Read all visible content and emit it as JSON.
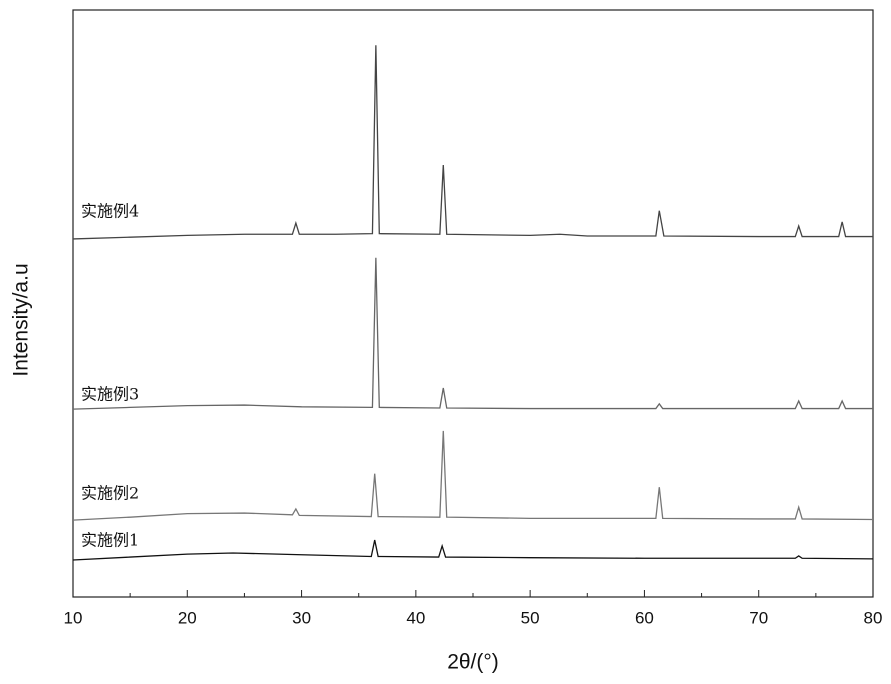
{
  "chart_data": {
    "type": "line",
    "x_label": "2θ/(°)",
    "y_label": "Intensity/a.u",
    "xlim": [
      10,
      80
    ],
    "xticks": [
      10,
      20,
      30,
      40,
      50,
      60,
      70,
      80
    ],
    "xminorticks": [
      15,
      25,
      35,
      45,
      55,
      65,
      75
    ],
    "ylim": [
      0,
      100
    ],
    "series": [
      {
        "name": "实施例1",
        "color": "#111111",
        "x": [
          10,
          15,
          20,
          24,
          30,
          36.1,
          36.4,
          36.7,
          42,
          42.3,
          42.6,
          50,
          60,
          73.2,
          73.5,
          73.8,
          80
        ],
        "values": [
          6.3,
          6.8,
          7.3,
          7.5,
          7.2,
          6.9,
          9.7,
          6.9,
          6.8,
          8.7,
          6.8,
          6.7,
          6.6,
          6.6,
          7.0,
          6.6,
          6.5
        ]
      },
      {
        "name": "实施例2",
        "color": "#777777",
        "x": [
          10,
          15,
          20,
          25,
          29.2,
          29.5,
          29.8,
          36.1,
          36.4,
          36.7,
          42.1,
          42.4,
          42.7,
          50,
          61,
          61.3,
          61.6,
          70,
          73.2,
          73.5,
          73.8,
          80
        ],
        "values": [
          13.1,
          13.6,
          14.2,
          14.3,
          14.0,
          15.0,
          13.9,
          13.7,
          21.0,
          13.7,
          13.6,
          28.3,
          13.6,
          13.4,
          13.4,
          18.7,
          13.4,
          13.3,
          13.3,
          15.3,
          13.3,
          13.2
        ]
      },
      {
        "name": "实施例3",
        "color": "#666666",
        "x": [
          10,
          15,
          20,
          25,
          30,
          36.2,
          36.5,
          36.8,
          42.1,
          42.4,
          42.7,
          50,
          61,
          61.3,
          61.6,
          70,
          73.2,
          73.5,
          73.8,
          77,
          77.3,
          77.6,
          80
        ],
        "values": [
          32.0,
          32.3,
          32.6,
          32.7,
          32.4,
          32.3,
          57.8,
          32.3,
          32.2,
          35.6,
          32.2,
          32.1,
          32.1,
          32.9,
          32.1,
          32.1,
          32.1,
          33.4,
          32.1,
          32.1,
          33.4,
          32.1,
          32.1
        ]
      },
      {
        "name": "实施例4",
        "color": "#444444",
        "x": [
          10,
          15,
          20,
          25,
          29.2,
          29.5,
          29.8,
          33,
          36.2,
          36.5,
          36.8,
          42.1,
          42.4,
          42.7,
          50,
          52.6,
          55,
          61,
          61.3,
          61.7,
          70,
          73.2,
          73.5,
          73.8,
          77,
          77.3,
          77.6,
          80
        ],
        "values": [
          61.0,
          61.3,
          61.6,
          61.8,
          61.8,
          63.7,
          61.8,
          61.8,
          61.9,
          94.0,
          61.9,
          61.8,
          73.6,
          61.8,
          61.6,
          61.8,
          61.5,
          61.5,
          65.8,
          61.5,
          61.4,
          61.4,
          63.2,
          61.4,
          61.4,
          63.9,
          61.4,
          61.4
        ]
      }
    ]
  }
}
